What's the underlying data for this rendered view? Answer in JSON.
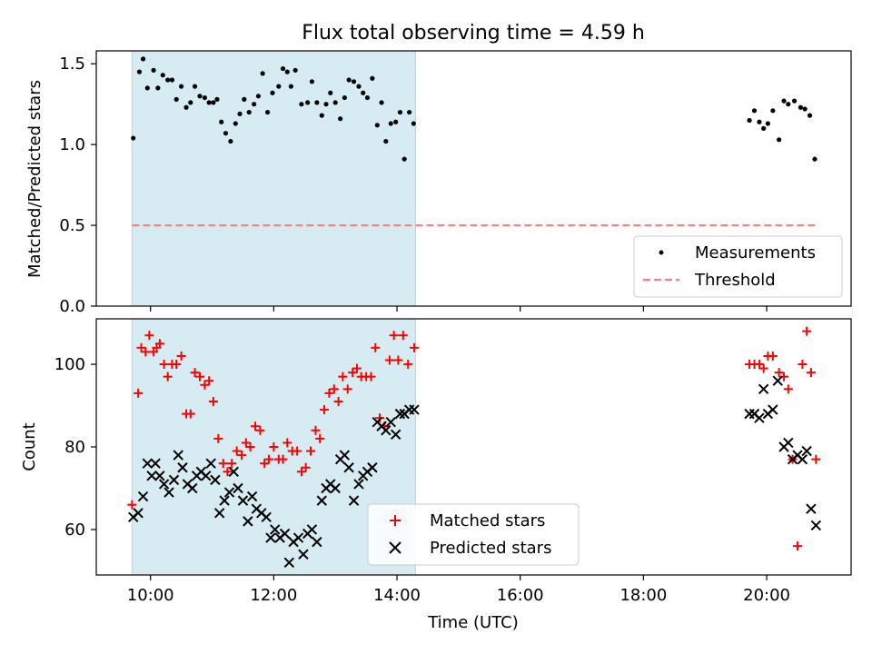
{
  "title": "Flux total observing time = 4.59 h",
  "xlabel": "Time (UTC)",
  "x_ticks": [
    "10:00",
    "12:00",
    "14:00",
    "16:00",
    "18:00",
    "20:00"
  ],
  "x_tick_hours": [
    10,
    12,
    14,
    16,
    18,
    20
  ],
  "xlim_hours": [
    9.12,
    21.37
  ],
  "highlight_span_hours": [
    9.7,
    14.3
  ],
  "colors": {
    "highlight": "#add8e6",
    "measurements": "#000000",
    "threshold": "#ff7f7f",
    "matched": "#ff0000",
    "predicted": "#000000"
  },
  "chart_data": [
    {
      "type": "scatter",
      "panel": "top",
      "ylabel": "Matched/Predicted stars",
      "ylim": [
        0.0,
        1.58
      ],
      "y_ticks": [
        "0.0",
        "0.5",
        "1.0",
        "1.5"
      ],
      "y_tick_values": [
        0.0,
        0.5,
        1.0,
        1.5
      ],
      "legend_position": "lower-right",
      "series": [
        {
          "name": "Measurements",
          "marker": "dot",
          "x_hours": [
            9.72,
            9.82,
            9.88,
            9.95,
            10.05,
            10.12,
            10.2,
            10.28,
            10.35,
            10.42,
            10.5,
            10.58,
            10.65,
            10.72,
            10.8,
            10.88,
            10.95,
            11.02,
            11.08,
            11.15,
            11.22,
            11.3,
            11.38,
            11.45,
            11.52,
            11.6,
            11.68,
            11.75,
            11.82,
            11.9,
            11.98,
            12.08,
            12.15,
            12.22,
            12.28,
            12.35,
            12.45,
            12.55,
            12.62,
            12.7,
            12.78,
            12.85,
            12.92,
            13.0,
            13.08,
            13.15,
            13.22,
            13.3,
            13.38,
            13.45,
            13.52,
            13.6,
            13.68,
            13.75,
            13.82,
            13.9,
            13.98,
            14.05,
            14.12,
            14.2,
            14.27,
            19.72,
            19.8,
            19.88,
            19.95,
            20.02,
            20.1,
            20.2,
            20.28,
            20.35,
            20.45,
            20.55,
            20.62,
            20.7,
            20.78
          ],
          "y": [
            1.04,
            1.45,
            1.53,
            1.35,
            1.46,
            1.35,
            1.43,
            1.4,
            1.4,
            1.28,
            1.36,
            1.23,
            1.26,
            1.36,
            1.3,
            1.29,
            1.26,
            1.26,
            1.28,
            1.14,
            1.07,
            1.02,
            1.13,
            1.19,
            1.28,
            1.2,
            1.25,
            1.3,
            1.44,
            1.2,
            1.32,
            1.36,
            1.47,
            1.45,
            1.36,
            1.46,
            1.25,
            1.26,
            1.39,
            1.26,
            1.18,
            1.25,
            1.32,
            1.26,
            1.16,
            1.29,
            1.4,
            1.39,
            1.36,
            1.32,
            1.29,
            1.41,
            1.12,
            1.26,
            1.02,
            1.13,
            1.14,
            1.2,
            0.91,
            1.2,
            1.13,
            1.15,
            1.21,
            1.14,
            1.1,
            1.13,
            1.21,
            1.03,
            1.27,
            1.25,
            1.27,
            1.23,
            1.22,
            1.18,
            0.91
          ]
        },
        {
          "name": "Threshold",
          "marker": "dashed-line",
          "x_hours": [
            9.7,
            20.8
          ],
          "y": [
            0.5,
            0.5
          ]
        }
      ]
    },
    {
      "type": "scatter",
      "panel": "bottom",
      "ylabel": "Count",
      "ylim": [
        49,
        111
      ],
      "y_ticks": [
        "60",
        "80",
        "100"
      ],
      "y_tick_values": [
        60,
        80,
        100
      ],
      "legend_position": "lower-center",
      "series": [
        {
          "name": "Matched stars",
          "marker": "plus",
          "x_hours": [
            9.7,
            9.8,
            9.85,
            9.92,
            9.98,
            10.05,
            10.1,
            10.15,
            10.22,
            10.28,
            10.35,
            10.42,
            10.5,
            10.58,
            10.65,
            10.72,
            10.8,
            10.88,
            10.95,
            11.02,
            11.1,
            11.18,
            11.25,
            11.32,
            11.4,
            11.48,
            11.55,
            11.62,
            11.7,
            11.78,
            11.85,
            11.92,
            12.0,
            12.08,
            12.15,
            12.22,
            12.3,
            12.38,
            12.45,
            12.52,
            12.6,
            12.68,
            12.75,
            12.82,
            12.9,
            12.98,
            13.05,
            13.12,
            13.2,
            13.28,
            13.35,
            13.42,
            13.5,
            13.58,
            13.65,
            13.72,
            13.8,
            13.88,
            13.95,
            14.02,
            14.1,
            14.18,
            14.28,
            19.72,
            19.8,
            19.88,
            19.95,
            20.02,
            20.1,
            20.2,
            20.28,
            20.35,
            20.42,
            20.5,
            20.58,
            20.65,
            20.72,
            20.8
          ],
          "y": [
            66,
            93,
            104,
            103,
            107,
            103,
            104,
            105,
            100,
            97,
            100,
            100,
            102,
            88,
            88,
            98,
            97,
            95,
            96,
            91,
            82,
            76,
            74,
            76,
            79,
            78,
            81,
            80,
            85,
            84,
            76,
            77,
            80,
            77,
            77,
            81,
            79,
            79,
            74,
            75,
            79,
            84,
            82,
            89,
            93,
            94,
            91,
            97,
            94,
            98,
            99,
            97,
            97,
            97,
            104,
            87,
            85,
            101,
            107,
            101,
            107,
            100,
            104,
            100,
            100,
            100,
            99,
            102,
            102,
            98,
            97,
            94,
            77,
            56,
            100,
            108,
            98,
            77
          ],
          "note_alignment": "x/y pairs"
        },
        {
          "name": "Predicted stars",
          "marker": "x",
          "x_hours": [
            9.72,
            9.8,
            9.88,
            9.95,
            10.02,
            10.08,
            10.15,
            10.22,
            10.3,
            10.38,
            10.45,
            10.52,
            10.6,
            10.68,
            10.75,
            10.82,
            10.9,
            10.98,
            11.05,
            11.12,
            11.2,
            11.28,
            11.35,
            11.42,
            11.5,
            11.58,
            11.65,
            11.72,
            11.8,
            11.88,
            11.95,
            12.02,
            12.1,
            12.18,
            12.25,
            12.32,
            12.4,
            12.48,
            12.55,
            12.62,
            12.7,
            12.78,
            12.85,
            12.92,
            13.0,
            13.08,
            13.15,
            13.22,
            13.3,
            13.38,
            13.45,
            13.52,
            13.6,
            13.68,
            13.75,
            13.82,
            13.9,
            13.98,
            14.05,
            14.12,
            14.2,
            14.28,
            19.72,
            19.8,
            19.88,
            19.95,
            20.02,
            20.1,
            20.18,
            20.28,
            20.35,
            20.42,
            20.5,
            20.58,
            20.65,
            20.72,
            20.8
          ],
          "y": [
            63,
            64,
            68,
            76,
            73,
            76,
            73,
            71,
            69,
            72,
            78,
            75,
            71,
            70,
            73,
            74,
            73,
            76,
            72,
            64,
            67,
            69,
            74,
            70,
            67,
            62,
            68,
            65,
            64,
            63,
            58,
            60,
            58,
            59,
            52,
            57,
            58,
            54,
            59,
            60,
            57,
            67,
            70,
            71,
            70,
            77,
            78,
            75,
            67,
            71,
            73,
            74,
            75,
            86,
            85,
            84,
            86,
            83,
            88,
            88,
            89,
            89,
            88,
            88,
            87,
            94,
            88,
            89,
            96,
            80,
            81,
            77,
            78,
            77,
            79,
            65,
            61
          ]
        }
      ]
    }
  ]
}
